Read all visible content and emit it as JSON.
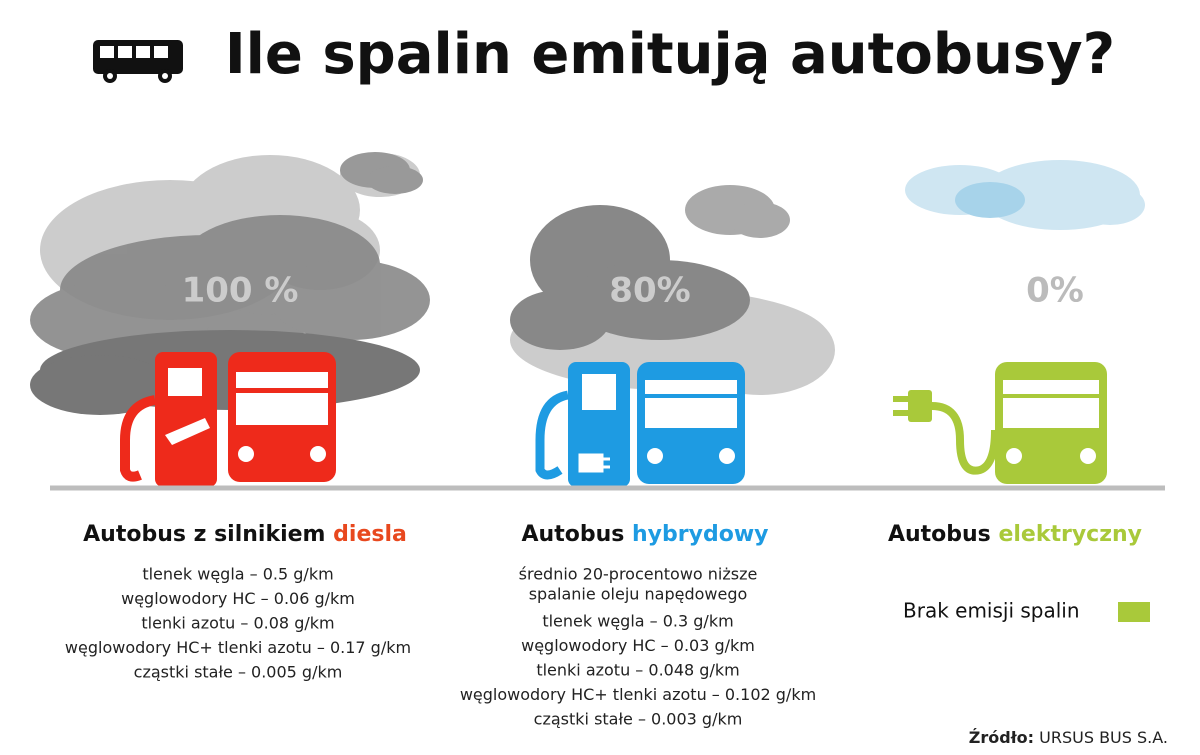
{
  "header": {
    "title": "Ile spalin emitują autobusy?"
  },
  "columns": [
    {
      "percent": "100 %",
      "title": "Autobus z silnikiem",
      "highlight": "diesla",
      "color": "#ee2a1b",
      "highlight_color": "#e8481e",
      "lines": [
        "tlenek węgla – 0.5 g/km",
        "węglowodory HC – 0.06 g/km",
        "tlenki azotu – 0.08 g/km",
        "węglowodory HC+ tlenki azotu – 0.17 g/km",
        "cząstki stałe – 0.005 g/km"
      ]
    },
    {
      "percent": "80%",
      "title": "Autobus",
      "highlight": "hybrydowy",
      "color": "#1e9be2",
      "highlight_color": "#1e9be2",
      "note": [
        "średnio 20-procentowo niższe",
        "spalanie oleju napędowego"
      ],
      "lines": [
        "tlenek węgla – 0.3 g/km",
        "węglowodory HC – 0.03 g/km",
        "tlenki azotu – 0.048 g/km",
        "węglowodory HC+ tlenki azotu – 0.102 g/km",
        "cząstki stałe – 0.003 g/km"
      ]
    },
    {
      "percent": "0%",
      "title": "Autobus",
      "highlight": "elektryczny",
      "color": "#a9c93a",
      "highlight_color": "#a9c93a",
      "legend": "Brak emisji spalin"
    }
  ],
  "source": {
    "label": "Źródło:",
    "text": "URSUS BUS S.A."
  }
}
